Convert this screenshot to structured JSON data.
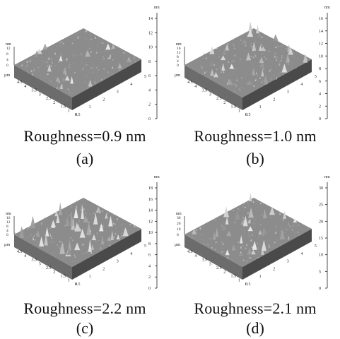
{
  "panels": [
    {
      "label": "(a)",
      "roughness": "Roughness=0.9 nm",
      "colorbar_unit": "nm",
      "colorbar_ticks": [
        "14",
        "12",
        "10",
        "8",
        "6",
        "4",
        "2",
        "0"
      ],
      "z_axis_unit": "nm",
      "z_axis_ticks": [
        "12",
        "8",
        "4",
        "0"
      ],
      "axis_unit": "µm",
      "left_axis_ticks": [
        "4.5",
        "4",
        "3.5",
        "3",
        "2.5",
        "2",
        "1.5",
        "1",
        "0.5"
      ],
      "right_axis_ticks": [
        "0",
        "1",
        "2",
        "3",
        "4",
        "5"
      ],
      "peak_intensity": 0.35
    },
    {
      "label": "(b)",
      "roughness": "Roughness=1.0 nm",
      "colorbar_unit": "nm",
      "colorbar_ticks": [
        "16",
        "14",
        "12",
        "10",
        "8",
        "6",
        "4",
        "2",
        "0"
      ],
      "z_axis_unit": "nm",
      "z_axis_ticks": [
        "16",
        "12",
        "8",
        "4",
        "0"
      ],
      "axis_unit": "µm",
      "left_axis_ticks": [
        "4.5",
        "4",
        "3.5",
        "3",
        "2.5",
        "2",
        "1.5",
        "1",
        "0.5"
      ],
      "right_axis_ticks": [
        "0",
        "1",
        "2",
        "3",
        "4",
        "5"
      ],
      "peak_intensity": 0.55
    },
    {
      "label": "(c)",
      "roughness": "Roughness=2.2 nm",
      "colorbar_unit": "nm",
      "colorbar_ticks": [
        "18",
        "16",
        "14",
        "12",
        "10",
        "8",
        "6",
        "4",
        "2",
        "0"
      ],
      "z_axis_unit": "nm",
      "z_axis_ticks": [
        "16",
        "12",
        "8",
        "4",
        "0"
      ],
      "axis_unit": "µm",
      "left_axis_ticks": [
        "4.5",
        "4",
        "3.5",
        "3",
        "2.5",
        "2",
        "1.5",
        "1",
        "0.5"
      ],
      "right_axis_ticks": [
        "0",
        "1",
        "2",
        "3",
        "4",
        "5"
      ],
      "peak_intensity": 0.95
    },
    {
      "label": "(d)",
      "roughness": "Roughness=2.1 nm",
      "colorbar_unit": "nm",
      "colorbar_ticks": [
        "30",
        "25",
        "20",
        "15",
        "10",
        "5",
        "0"
      ],
      "z_axis_unit": "nm",
      "z_axis_ticks": [
        "30",
        "20",
        "10",
        "0"
      ],
      "axis_unit": "µm",
      "left_axis_ticks": [
        "4.5",
        "4",
        "3.5",
        "3",
        "2.5",
        "2",
        "1.5",
        "1",
        "0.5"
      ],
      "right_axis_ticks": [
        "0",
        "1",
        "2",
        "3",
        "4",
        "5"
      ],
      "peak_intensity": 0.7
    }
  ]
}
